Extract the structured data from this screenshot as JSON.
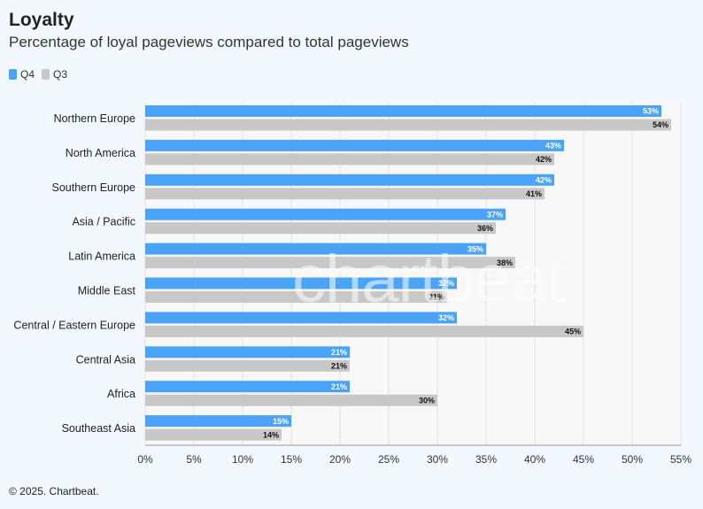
{
  "header": {
    "title": "Loyalty",
    "subtitle": "Percentage of loyal pageviews compared to total pageviews"
  },
  "legend": [
    {
      "label": "Q4",
      "color": "#4ba3f7"
    },
    {
      "label": "Q3",
      "color": "#c8c8c8"
    }
  ],
  "footer": {
    "credit": "© 2025. Chartbeat."
  },
  "watermark": "chartbeat",
  "chart_data": {
    "type": "bar",
    "orientation": "horizontal",
    "categories": [
      "Northern Europe",
      "North America",
      "Southern Europe",
      "Asia / Pacific",
      "Latin America",
      "Middle East",
      "Central / Eastern Europe",
      "Central Asia",
      "Africa",
      "Southeast Asia"
    ],
    "series": [
      {
        "name": "Q4",
        "color": "#4ba3f7",
        "values": [
          53,
          43,
          42,
          37,
          35,
          32,
          32,
          21,
          21,
          15
        ]
      },
      {
        "name": "Q3",
        "color": "#c8c8c8",
        "values": [
          54,
          42,
          41,
          36,
          38,
          31,
          45,
          21,
          30,
          14
        ]
      }
    ],
    "xlim": [
      0,
      55
    ],
    "xticks": [
      0,
      5,
      10,
      15,
      20,
      25,
      30,
      35,
      40,
      45,
      50,
      55
    ],
    "tick_suffix": "%",
    "value_suffix": "%",
    "grid": true
  }
}
